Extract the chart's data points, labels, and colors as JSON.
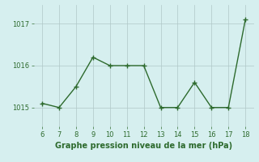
{
  "x": [
    6,
    7,
    8,
    9,
    10,
    11,
    12,
    13,
    14,
    15,
    16,
    17,
    18
  ],
  "y": [
    1015.1,
    1015.0,
    1015.5,
    1016.2,
    1016.0,
    1016.0,
    1016.0,
    1015.0,
    1015.0,
    1015.6,
    1015.0,
    1015.0,
    1017.1
  ],
  "line_color": "#2d6a2d",
  "marker": "+",
  "marker_color": "#2d6a2d",
  "marker_size": 4,
  "linewidth": 1.0,
  "title": "Graphe pression niveau de la mer (hPa)",
  "title_color": "#2d6a2d",
  "title_fontsize": 7,
  "xlim": [
    5.5,
    18.5
  ],
  "ylim": [
    1014.55,
    1017.45
  ],
  "yticks": [
    1015,
    1016,
    1017
  ],
  "xticks": [
    6,
    7,
    8,
    9,
    10,
    11,
    12,
    13,
    14,
    15,
    16,
    17,
    18
  ],
  "background_color": "#d6efef",
  "grid_color": "#b0c8c8",
  "tick_color": "#2d6a2d",
  "tick_fontsize": 6
}
